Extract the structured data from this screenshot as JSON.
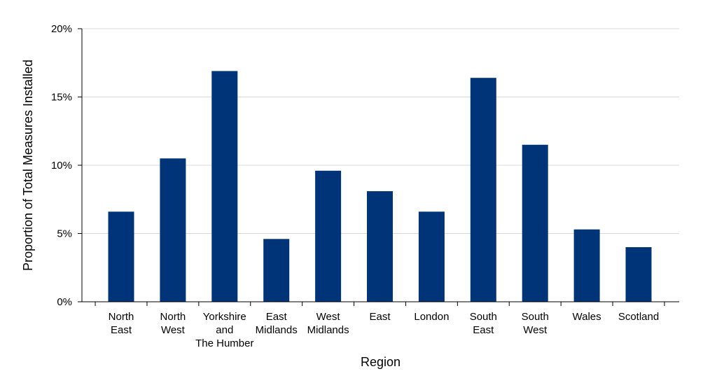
{
  "chart_data": {
    "type": "bar",
    "title": "",
    "xlabel": "Region",
    "ylabel": "Proportion of Total Measures Installed",
    "ylim": [
      0,
      20
    ],
    "yticks": [
      0,
      5,
      10,
      15,
      20
    ],
    "ytick_labels": [
      "0%",
      "5%",
      "10%",
      "15%",
      "20%"
    ],
    "grid": true,
    "bar_color": "#003478",
    "grid_color": "#d9d9d9",
    "categories": [
      [
        "North",
        "East"
      ],
      [
        "North",
        "West"
      ],
      [
        "Yorkshire",
        "and",
        "The Humber"
      ],
      [
        "East",
        "Midlands"
      ],
      [
        "West",
        "Midlands"
      ],
      [
        "East"
      ],
      [
        "London"
      ],
      [
        "South",
        "East"
      ],
      [
        "South",
        "West"
      ],
      [
        "Wales"
      ],
      [
        "Scotland"
      ]
    ],
    "values": [
      6.6,
      10.5,
      16.9,
      4.6,
      9.6,
      8.1,
      6.6,
      16.4,
      11.5,
      5.3,
      4.0
    ]
  }
}
